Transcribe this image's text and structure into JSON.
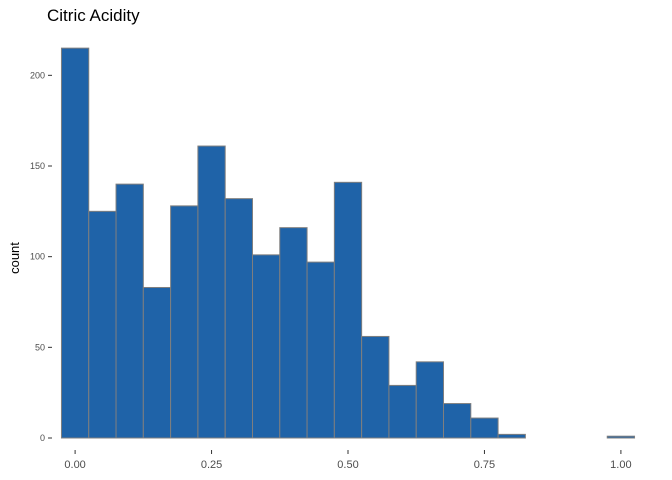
{
  "chart_data": {
    "type": "bar",
    "title": "Citric Acidity",
    "xlabel": "",
    "ylabel": "count",
    "bin_width": 0.05,
    "bin_centers": [
      0.0,
      0.05,
      0.1,
      0.15,
      0.2,
      0.25,
      0.3,
      0.35,
      0.4,
      0.45,
      0.5,
      0.55,
      0.6,
      0.65,
      0.7,
      0.75,
      0.8,
      0.85,
      0.9,
      0.95,
      1.0
    ],
    "values": [
      215,
      125,
      140,
      83,
      128,
      161,
      132,
      101,
      116,
      97,
      141,
      56,
      29,
      42,
      19,
      11,
      2,
      0,
      0,
      0,
      1
    ],
    "xlim": [
      -0.035,
      1.035
    ],
    "ylim": [
      0,
      225
    ],
    "x_ticks": [
      {
        "value": 0.0,
        "label": "0.00"
      },
      {
        "value": 0.25,
        "label": "0.25"
      },
      {
        "value": 0.5,
        "label": "0.50"
      },
      {
        "value": 0.75,
        "label": "0.75"
      },
      {
        "value": 1.0,
        "label": "1.00"
      }
    ],
    "y_ticks": [
      {
        "value": 0,
        "label": "0"
      },
      {
        "value": 50,
        "label": "50"
      },
      {
        "value": 100,
        "label": "100"
      },
      {
        "value": 150,
        "label": "150"
      },
      {
        "value": 200,
        "label": "200"
      }
    ],
    "grid": false,
    "bar_color": "#1f63a8",
    "bar_edge_color": "#7f7f7f"
  }
}
